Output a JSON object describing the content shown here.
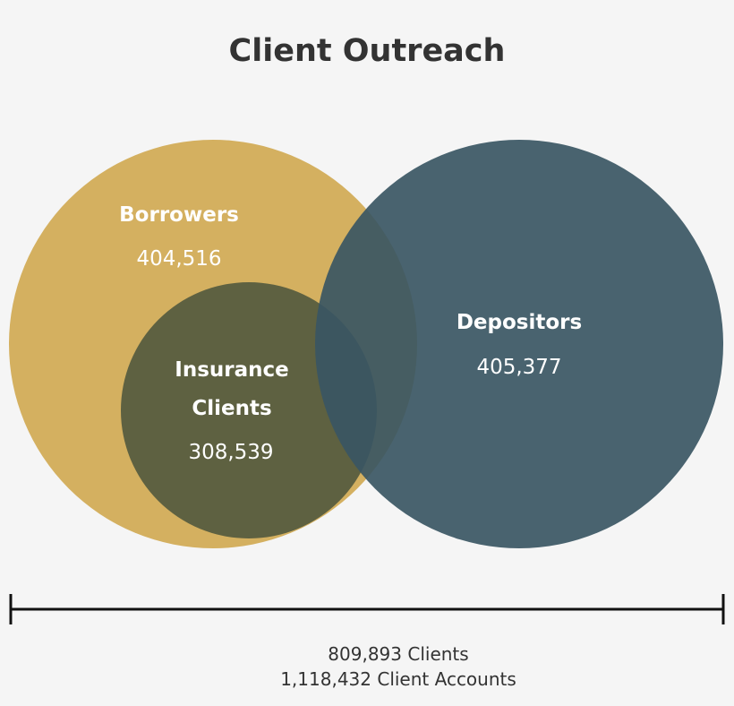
{
  "title": "Client Outreach",
  "sets": [
    {
      "label": "Borrowers",
      "count": "404,516"
    },
    {
      "label": "Depositors",
      "count": "405,377"
    },
    {
      "label": "Insurance Clients",
      "count": "308,539"
    }
  ],
  "footer": {
    "lines": [
      "809,893 Clients",
      "1,118,432 Client Accounts"
    ]
  }
}
